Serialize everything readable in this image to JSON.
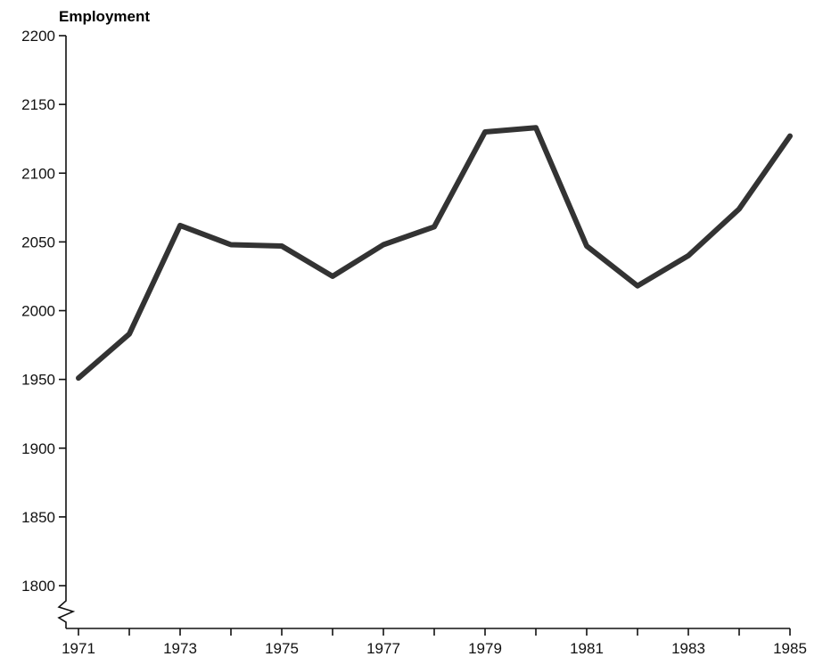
{
  "chart_data": {
    "type": "line",
    "title": "",
    "xlabel": "",
    "ylabel": "Employment",
    "x": [
      1971,
      1972,
      1973,
      1974,
      1975,
      1976,
      1977,
      1978,
      1979,
      1980,
      1981,
      1982,
      1983,
      1984,
      1985
    ],
    "series": [
      {
        "values": [
          1951,
          1983,
          2062,
          2048,
          2047,
          2025,
          2048,
          2061,
          2130,
          2133,
          2047,
          2018,
          2040,
          2074,
          2127
        ],
        "color": "#333333"
      }
    ],
    "xlim": [
      1971,
      1985
    ],
    "ylim": [
      1800,
      2200
    ],
    "x_ticks": [
      1971,
      1972,
      1973,
      1974,
      1975,
      1976,
      1977,
      1978,
      1979,
      1980,
      1981,
      1982,
      1983,
      1984,
      1985
    ],
    "x_tick_labels": [
      "1971",
      "1973",
      "1975",
      "1977",
      "1979",
      "1981",
      "1983",
      "1985"
    ],
    "y_ticks": [
      1800,
      1850,
      1900,
      1950,
      2000,
      2050,
      2100,
      2150,
      2200
    ],
    "y_tick_labels": [
      "1800",
      "1850",
      "1900",
      "1950",
      "2000",
      "2050",
      "2100",
      "2150",
      "2200"
    ],
    "y_axis_break": true,
    "grid": false,
    "legend": "none"
  }
}
